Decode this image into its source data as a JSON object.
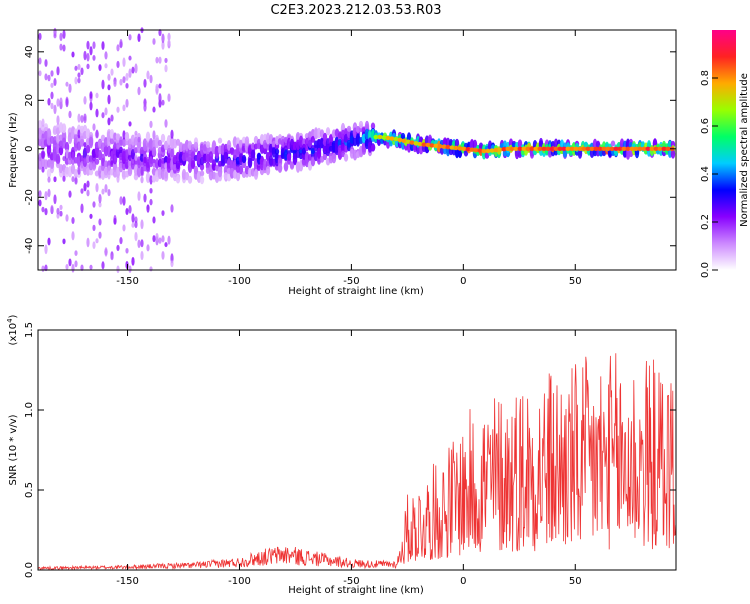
{
  "title": "C2E3.2023.212.03.53.R03",
  "chart_data": [
    {
      "type": "heatmap",
      "xlabel": "Height of straight line (km)",
      "ylabel": "Frequency (Hz)",
      "xlim": [
        -190,
        95
      ],
      "ylim": [
        -50,
        49
      ],
      "xticks": [
        -150,
        -100,
        -50,
        0,
        50
      ],
      "yticks": [
        -40,
        -20,
        0,
        20,
        40
      ],
      "colorbar": {
        "label": "Normalized spectral amplitude",
        "range": [
          0,
          1
        ],
        "ticks": [
          "0.0",
          "0.2",
          "0.4",
          "0.6",
          "0.8"
        ],
        "colors": [
          "#ffffff",
          "#cc88ff",
          "#8800ff",
          "#0000ff",
          "#00ccff",
          "#00ff66",
          "#99ff00",
          "#ffaa00",
          "#ff2222",
          "#ff0088"
        ]
      },
      "ridge": {
        "x": [
          -190,
          -150,
          -120,
          -100,
          -80,
          -60,
          -45,
          -38,
          -30,
          -20,
          -10,
          0,
          10,
          20,
          40,
          60,
          80,
          95
        ],
        "y": [
          0,
          -3,
          -5,
          -4,
          -2,
          1,
          4,
          5,
          4,
          2,
          1,
          0,
          -1,
          0,
          0,
          0,
          0,
          0
        ],
        "amplitude": [
          0.25,
          0.28,
          0.3,
          0.35,
          0.38,
          0.4,
          0.45,
          0.75,
          0.8,
          0.85,
          0.88,
          0.9,
          0.88,
          0.9,
          0.92,
          0.92,
          0.93,
          0.92
        ]
      }
    },
    {
      "type": "line",
      "xlabel": "Height of straight line (km)",
      "ylabel": "SNR (10 * v/v)",
      "yunit": "(x10",
      "yunit_exp": "4",
      "xlim": [
        -190,
        95
      ],
      "ylim": [
        0,
        1.5
      ],
      "xticks": [
        -150,
        -100,
        -50,
        0,
        50
      ],
      "yticks": [
        "0.0",
        "0.5",
        "1.0",
        "1.5"
      ],
      "color": "#ee3333",
      "envelope": {
        "x": [
          -190,
          -150,
          -120,
          -100,
          -90,
          -80,
          -70,
          -60,
          -50,
          -40,
          -30,
          -25,
          -20,
          -10,
          0,
          10,
          20,
          30,
          40,
          50,
          60,
          70,
          80,
          95
        ],
        "y": [
          0.02,
          0.03,
          0.05,
          0.08,
          0.13,
          0.16,
          0.13,
          0.1,
          0.07,
          0.06,
          0.06,
          0.3,
          0.35,
          0.45,
          0.6,
          0.7,
          0.72,
          0.78,
          0.8,
          0.82,
          0.85,
          0.86,
          0.85,
          0.8
        ]
      }
    }
  ]
}
